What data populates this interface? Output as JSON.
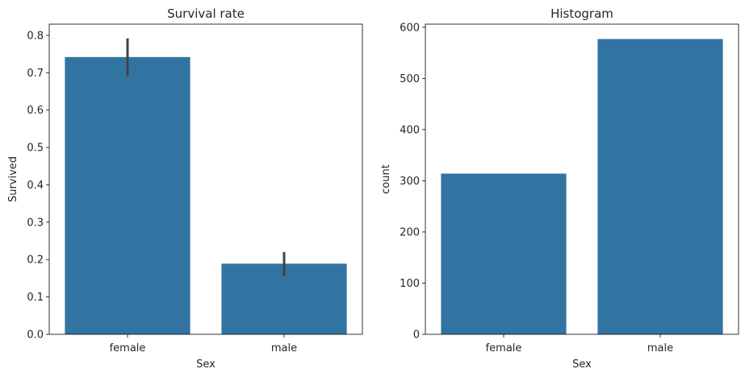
{
  "chart_data": [
    {
      "type": "bar",
      "title": "Survival rate",
      "xlabel": "Sex",
      "ylabel": "Survived",
      "categories": [
        "female",
        "male"
      ],
      "values": [
        0.742,
        0.189
      ],
      "error_bars": [
        [
          0.69,
          0.792
        ],
        [
          0.156,
          0.22
        ]
      ],
      "ylim": [
        0,
        0.83
      ],
      "yticks": [
        0.0,
        0.1,
        0.2,
        0.3,
        0.4,
        0.5,
        0.6,
        0.7,
        0.8
      ],
      "ytick_labels": [
        "0.0",
        "0.1",
        "0.2",
        "0.3",
        "0.4",
        "0.5",
        "0.6",
        "0.7",
        "0.8"
      ],
      "bar_color": "#3274a1",
      "error_color": "#424242",
      "grid": false
    },
    {
      "type": "bar",
      "title": "Histogram",
      "xlabel": "Sex",
      "ylabel": "count",
      "categories": [
        "female",
        "male"
      ],
      "values": [
        314,
        577
      ],
      "ylim": [
        0,
        606
      ],
      "yticks": [
        0,
        100,
        200,
        300,
        400,
        500,
        600
      ],
      "ytick_labels": [
        "0",
        "100",
        "200",
        "300",
        "400",
        "500",
        "600"
      ],
      "bar_color": "#3274a1",
      "grid": false
    }
  ]
}
